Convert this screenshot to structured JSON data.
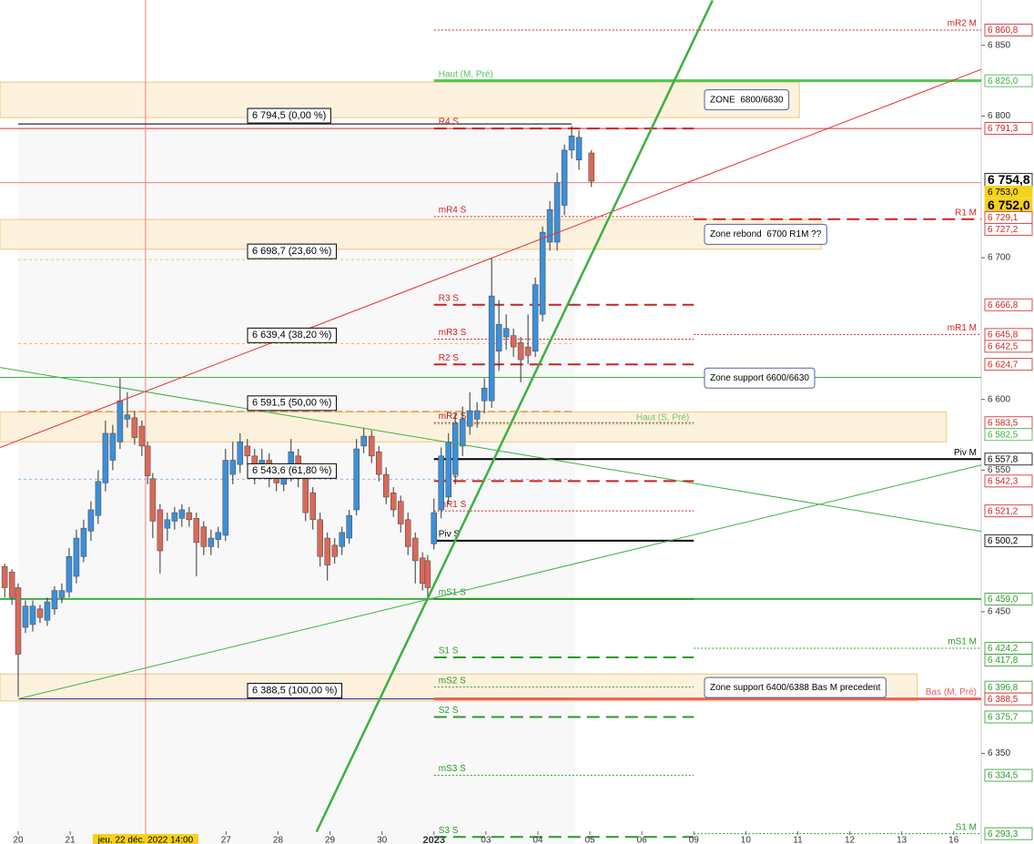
{
  "chart_data": {
    "type": "candlestick",
    "xlim": [
      -0.35,
      18.53
    ],
    "ylim": [
      6286,
      6882
    ],
    "xticks": [
      {
        "value": 0,
        "label": "20"
      },
      {
        "value": 1,
        "label": "21"
      },
      {
        "value": 4,
        "label": "27"
      },
      {
        "value": 5,
        "label": "28"
      },
      {
        "value": 6,
        "label": "29"
      },
      {
        "value": 7,
        "label": "30"
      },
      {
        "value": 8,
        "label": "2023"
      },
      {
        "value": 9,
        "label": "03"
      },
      {
        "value": 10,
        "label": "04"
      },
      {
        "value": 11,
        "label": "05"
      },
      {
        "value": 12,
        "label": "06"
      },
      {
        "value": 13,
        "label": "09"
      },
      {
        "value": 14,
        "label": "10"
      },
      {
        "value": 15,
        "label": "11"
      },
      {
        "value": 16,
        "label": "12"
      },
      {
        "value": 17,
        "label": "13"
      },
      {
        "value": 18,
        "label": "16"
      }
    ],
    "yticks": [
      {
        "value": 6850,
        "label": "6 850"
      },
      {
        "value": 6800,
        "label": "6 800"
      },
      {
        "value": 6700,
        "label": "6 700"
      },
      {
        "value": 6600,
        "label": "6 600"
      },
      {
        "value": 6550,
        "label": "6 550"
      },
      {
        "value": 6450,
        "label": "6 450"
      },
      {
        "value": 6350,
        "label": "6 350"
      }
    ],
    "crosshair": {
      "x": 2.45,
      "x_label": "jeu. 22 déc. 2022 14:00",
      "y": 6753.0
    },
    "up_color": "#3d8fd8",
    "down_color": "#d9695a",
    "candles": {
      "x": [
        -0.26,
        -0.12,
        0,
        0.14,
        0.28,
        0.42,
        0.56,
        0.7,
        0.84,
        0.98,
        1.12,
        1.26,
        1.4,
        1.54,
        1.68,
        1.82,
        1.96,
        2.1,
        2.24,
        2.38,
        2.49,
        2.59,
        2.73,
        2.87,
        3.01,
        3.15,
        3.29,
        3.43,
        3.57,
        3.71,
        3.85,
        3.99,
        4.13,
        4.27,
        4.41,
        4.55,
        4.69,
        4.83,
        4.97,
        5.11,
        5.25,
        5.39,
        5.53,
        5.67,
        5.81,
        5.95,
        6.09,
        6.23,
        6.37,
        6.51,
        6.65,
        6.8,
        6.94,
        7.08,
        7.22,
        7.36,
        7.5,
        7.64,
        7.78,
        7.88,
        8.0,
        8.14,
        8.28,
        8.41,
        8.55,
        8.69,
        8.83,
        8.97,
        9.11,
        9.25,
        9.39,
        9.53,
        9.67,
        9.81,
        9.95,
        10.09,
        10.23,
        10.37,
        10.51,
        10.65,
        10.79,
        11.03
      ],
      "open": [
        6482,
        6478,
        6467,
        6439,
        6441,
        6452,
        6444,
        6452,
        6460,
        6464,
        6475,
        6489,
        6507,
        6518,
        6541,
        6557,
        6570,
        6586,
        6587,
        6581,
        6567,
        6544,
        6522,
        6509,
        6514,
        6516,
        6520,
        6516,
        6510,
        6496,
        6501,
        6504,
        6547,
        6554,
        6567,
        6560,
        6551,
        6557,
        6547,
        6540,
        6547,
        6560,
        6544,
        6534,
        6515,
        6502,
        6497,
        6496,
        6502,
        6522,
        6567,
        6574,
        6563,
        6547,
        6534,
        6528,
        6515,
        6502,
        6488,
        6486,
        6498,
        6522,
        6531,
        6547,
        6567,
        6581,
        6586,
        6599,
        6599,
        6634,
        6644,
        6645,
        6640,
        6637,
        6634,
        6660,
        6711,
        6711,
        6737,
        6776,
        6769,
        6774
      ],
      "high": [
        6484,
        6480,
        6470,
        6458,
        6458,
        6455,
        6460,
        6468,
        6470,
        6495,
        6508,
        6515,
        6528,
        6550,
        6585,
        6582,
        6615,
        6605,
        6592,
        6585,
        6570,
        6548,
        6526,
        6520,
        6524,
        6526,
        6524,
        6520,
        6514,
        6508,
        6510,
        6565,
        6570,
        6576,
        6572,
        6565,
        6565,
        6562,
        6552,
        6552,
        6572,
        6565,
        6548,
        6538,
        6520,
        6506,
        6502,
        6510,
        6522,
        6572,
        6580,
        6578,
        6567,
        6552,
        6538,
        6532,
        6520,
        6506,
        6492,
        6490,
        6530,
        6566,
        6576,
        6590,
        6595,
        6605,
        6598,
        6615,
        6700,
        6670,
        6660,
        6650,
        6644,
        6660,
        6686,
        6722,
        6740,
        6760,
        6780,
        6793,
        6790,
        6776
      ],
      "low": [
        6460,
        6455,
        6390,
        6435,
        6436,
        6442,
        6440,
        6448,
        6456,
        6460,
        6470,
        6485,
        6500,
        6512,
        6535,
        6550,
        6565,
        6580,
        6568,
        6560,
        6540,
        6502,
        6477,
        6500,
        6508,
        6510,
        6510,
        6475,
        6490,
        6490,
        6495,
        6500,
        6540,
        6548,
        6554,
        6540,
        6545,
        6538,
        6535,
        6535,
        6542,
        6538,
        6514,
        6508,
        6482,
        6472,
        6484,
        6490,
        6498,
        6518,
        6562,
        6555,
        6542,
        6526,
        6517,
        6506,
        6490,
        6470,
        6465,
        6459,
        6494,
        6516,
        6526,
        6540,
        6560,
        6575,
        6580,
        6590,
        6594,
        6620,
        6635,
        6630,
        6612,
        6625,
        6630,
        6655,
        6705,
        6705,
        6730,
        6770,
        6762,
        6750
      ],
      "close": [
        6467,
        6460,
        6420,
        6454,
        6454,
        6446,
        6457,
        6465,
        6465,
        6489,
        6502,
        6509,
        6522,
        6542,
        6576,
        6576,
        6599,
        6589,
        6573,
        6567,
        6546,
        6514,
        6493,
        6515,
        6520,
        6522,
        6515,
        6499,
        6496,
        6502,
        6506,
        6557,
        6557,
        6570,
        6560,
        6547,
        6557,
        6544,
        6541,
        6547,
        6563,
        6544,
        6520,
        6515,
        6489,
        6483,
        6489,
        6506,
        6518,
        6565,
        6574,
        6560,
        6547,
        6531,
        6522,
        6512,
        6496,
        6486,
        6470,
        6467,
        6520,
        6560,
        6570,
        6583,
        6586,
        6592,
        6592,
        6608,
        6673,
        6653,
        6650,
        6637,
        6628,
        6631,
        6681,
        6718,
        6734,
        6753,
        6776,
        6786,
        6785,
        6754
      ]
    },
    "lines": [
      {
        "value": 6791.3,
        "color": "#e03030",
        "width": 1
      },
      {
        "value": 6615.5,
        "color": "#3cb043",
        "width": 1
      },
      {
        "value": 6459.0,
        "color": "#3cb043",
        "width": 2
      }
    ],
    "levels": [
      {
        "name": "mR2 M",
        "value": 6860.8,
        "color": "#d02020",
        "dash": "2 2",
        "width": 1,
        "from": 8.0,
        "to": 18.53,
        "side": "right"
      },
      {
        "name": "Haut (M, Pré)",
        "value": 6825.0,
        "color": "#4fc84f",
        "dash": "",
        "width": 3,
        "from": 8.0,
        "to": 18.53,
        "side": "left"
      },
      {
        "name": "R4 S",
        "value": 6791.3,
        "color": "#d02020",
        "dash": "14 7",
        "width": 2,
        "from": 8.0,
        "to": 13.0,
        "side": "left"
      },
      {
        "name": "mR4 S",
        "value": 6729.1,
        "color": "#d02020",
        "dash": "2 2",
        "width": 1,
        "from": 8.0,
        "to": 13.0,
        "side": "left"
      },
      {
        "name": "R1 M",
        "value": 6727.2,
        "color": "#d02020",
        "dash": "14 7",
        "width": 2,
        "from": 13.0,
        "to": 18.53,
        "side": "right"
      },
      {
        "name": "R3 S",
        "value": 6666.8,
        "color": "#d02020",
        "dash": "14 7",
        "width": 2,
        "from": 8.0,
        "to": 13.0,
        "side": "left"
      },
      {
        "name": "mR3 S",
        "value": 6642.5,
        "color": "#d02020",
        "dash": "2 2",
        "width": 1,
        "from": 8.0,
        "to": 13.0,
        "side": "left"
      },
      {
        "name": "mR1 M",
        "value": 6645.8,
        "color": "#d02020",
        "dash": "2 2",
        "width": 1,
        "from": 13.0,
        "to": 18.53,
        "side": "right"
      },
      {
        "name": "R2 S",
        "value": 6624.7,
        "color": "#d02020",
        "dash": "14 7",
        "width": 2,
        "from": 8.0,
        "to": 13.0,
        "side": "left"
      },
      {
        "name": "mR2 S",
        "value": 6583.5,
        "color": "#a02020",
        "dash": "2 2",
        "width": 1,
        "from": 8.0,
        "to": 13.0,
        "side": "left"
      },
      {
        "name": "Haut (S, Pré)",
        "value": 6582.5,
        "color": "#6cc86c",
        "dash": "2 2",
        "width": 1,
        "from": 8.0,
        "to": 13.0,
        "side": "right"
      },
      {
        "name": "Piv M",
        "value": 6557.8,
        "color": "#000000",
        "dash": "",
        "width": 2,
        "from": 8.0,
        "to": 18.53,
        "side": "right"
      },
      {
        "name": "R1 S",
        "value": 6542.3,
        "color": "#d02020",
        "dash": "14 7",
        "width": 2,
        "from": 8.0,
        "to": 13.0,
        "side": "left"
      },
      {
        "name": "mR1 S",
        "value": 6521.2,
        "color": "#d02020",
        "dash": "2 2",
        "width": 1,
        "from": 8.0,
        "to": 13.0,
        "side": "left"
      },
      {
        "name": "Piv S",
        "value": 6500.2,
        "color": "#000000",
        "dash": "",
        "width": 2,
        "from": 8.0,
        "to": 13.0,
        "side": "left"
      },
      {
        "name": "mS1 S",
        "value": 6459.0,
        "color": "#2a9a2a",
        "dash": "",
        "width": 2,
        "from": 8.0,
        "to": 13.0,
        "side": "left"
      },
      {
        "name": "mS1 M",
        "value": 6424.2,
        "color": "#2a9a2a",
        "dash": "2 2",
        "width": 1,
        "from": 13.0,
        "to": 18.53,
        "side": "right"
      },
      {
        "name": "S1 S",
        "value": 6417.8,
        "color": "#2a9a2a",
        "dash": "14 7",
        "width": 2,
        "from": 8.0,
        "to": 13.0,
        "side": "left"
      },
      {
        "name": "mS2 S",
        "value": 6396.8,
        "color": "#2a9a2a",
        "dash": "2 2",
        "width": 1,
        "from": 8.0,
        "to": 13.0,
        "side": "left"
      },
      {
        "name": "Bas (M, Pré)",
        "value": 6388.5,
        "color": "#e86060",
        "dash": "",
        "width": 3,
        "from": 8.0,
        "to": 18.53,
        "side": "right"
      },
      {
        "name": "S2 S",
        "value": 6375.7,
        "color": "#2a9a2a",
        "dash": "14 7",
        "width": 2,
        "from": 8.0,
        "to": 13.0,
        "side": "left"
      },
      {
        "name": "mS3 S",
        "value": 6334.5,
        "color": "#2a9a2a",
        "dash": "2 2",
        "width": 1,
        "from": 8.0,
        "to": 13.0,
        "side": "left"
      },
      {
        "name": "S3 S",
        "value": 6291,
        "color": "#2a9a2a",
        "dash": "14 7",
        "width": 2,
        "from": 8.0,
        "to": 13.0,
        "side": "left"
      },
      {
        "name": "S1 M",
        "value": 6293.3,
        "color": "#2a9a2a",
        "dash": "2 2",
        "width": 1,
        "from": 13.0,
        "to": 18.53,
        "side": "right"
      }
    ],
    "fib": [
      {
        "value": 6794.5,
        "label": "6 794,5 (0,00 %)",
        "color": "#000000",
        "dash": ""
      },
      {
        "value": 6698.7,
        "label": "6 698,7 (23,60 %)",
        "color": "#e8d040",
        "dash": "3 3"
      },
      {
        "value": 6639.4,
        "label": "6 639,4 (38,20 %)",
        "color": "#f0b050",
        "dash": "3 3"
      },
      {
        "value": 6591.5,
        "label": "6 591,5 (50,00 %)",
        "color": "#e08030",
        "dash": "8 4"
      },
      {
        "value": 6543.6,
        "label": "6 543,6 (61,80 %)",
        "color": "#90b8e8",
        "dash": "3 3"
      },
      {
        "value": 6388.5,
        "label": "6 388,5 (100,00 %)",
        "color": "#2020a0",
        "dash": ""
      }
    ],
    "fib_range": [
      0,
      10.65
    ],
    "zones": [
      {
        "label": "ZONE  6800/6830",
        "range": [
          6799,
          6824
        ],
        "end": 15.03,
        "fill": true
      },
      {
        "label": "Zone rebond  6700 R1M ??",
        "range": [
          6706,
          6727
        ],
        "end": 15.45,
        "fill": true
      },
      {
        "label": "Zone support 6600/6630",
        "range": [
          6600,
          6630
        ],
        "end": 15.45,
        "fill": false
      },
      {
        "range": [
          6570,
          6591
        ],
        "end": 17.86,
        "fill": true
      },
      {
        "label": "Zone support 6400/6388 Bas M precedent",
        "range": [
          6387,
          6406
        ],
        "end": 17.3,
        "fill": true
      }
    ],
    "trendlines": [
      {
        "color": "#e83030",
        "width": 1,
        "x": [
          -0.35,
          18.53
        ],
        "y": [
          6566,
          6833
        ]
      },
      {
        "color": "#3cb043",
        "width": 2.5,
        "x": [
          5.74,
          13.36
        ],
        "y": [
          6294.6,
          6881.7
        ]
      },
      {
        "color": "#3cb043",
        "width": 1,
        "x": [
          -0.35,
          18.53
        ],
        "y": [
          6622.5,
          6506.8
        ]
      },
      {
        "color": "#3cb043",
        "width": 1,
        "x": [
          0,
          18.53
        ],
        "y": [
          6388.5,
          6553.6
        ]
      }
    ],
    "price_labels": [
      {
        "value": 6860.8,
        "label": "6 860,8",
        "color": "#d02020"
      },
      {
        "value": 6825.0,
        "label": "6 825,0",
        "color": "#3cb043"
      },
      {
        "value": 6791.3,
        "label": "6 791,3",
        "color": "#d02020"
      },
      {
        "value": 6754.8,
        "label": "6 754,8",
        "color": "#000000",
        "bold": true
      },
      {
        "value": 6753.0,
        "label": "6 753,0",
        "color": "#000000",
        "bg": "#f7d21a"
      },
      {
        "value": 6752.0,
        "label": "6 752,0",
        "color": "#000000",
        "bg": "#f7d21a",
        "bold": true
      },
      {
        "value": 6729.1,
        "label": "6 729,1",
        "color": "#d02020"
      },
      {
        "value": 6727.2,
        "label": "6 727,2",
        "color": "#d02020"
      },
      {
        "value": 6666.8,
        "label": "6 666,8",
        "color": "#d02020"
      },
      {
        "value": 6645.8,
        "label": "6 645,8",
        "color": "#d02020"
      },
      {
        "value": 6642.5,
        "label": "6 642,5",
        "color": "#d02020"
      },
      {
        "value": 6624.7,
        "label": "6 624,7",
        "color": "#d02020"
      },
      {
        "value": 6583.5,
        "label": "6 583,5",
        "color": "#d02020"
      },
      {
        "value": 6582.5,
        "label": "6 582,5",
        "color": "#3cb043"
      },
      {
        "value": 6557.8,
        "label": "6 557,8",
        "color": "#000000"
      },
      {
        "value": 6542.3,
        "label": "6 542,3",
        "color": "#d02020"
      },
      {
        "value": 6521.2,
        "label": "6 521,2",
        "color": "#d02020"
      },
      {
        "value": 6500.2,
        "label": "6 500,2",
        "color": "#000000"
      },
      {
        "value": 6459.0,
        "label": "6 459,0",
        "color": "#2a9a2a"
      },
      {
        "value": 6424.2,
        "label": "6 424,2",
        "color": "#2a9a2a"
      },
      {
        "value": 6417.8,
        "label": "6 417,8",
        "color": "#2a9a2a"
      },
      {
        "value": 6396.8,
        "label": "6 396,8",
        "color": "#2a9a2a"
      },
      {
        "value": 6388.5,
        "label": "6 388,5",
        "color": "#d02020"
      },
      {
        "value": 6375.7,
        "label": "6 375,7",
        "color": "#2a9a2a"
      },
      {
        "value": 6334.5,
        "label": "6 334,5",
        "color": "#2a9a2a"
      },
      {
        "value": 6293.3,
        "label": "6 293,3",
        "color": "#2a9a2a"
      }
    ]
  }
}
